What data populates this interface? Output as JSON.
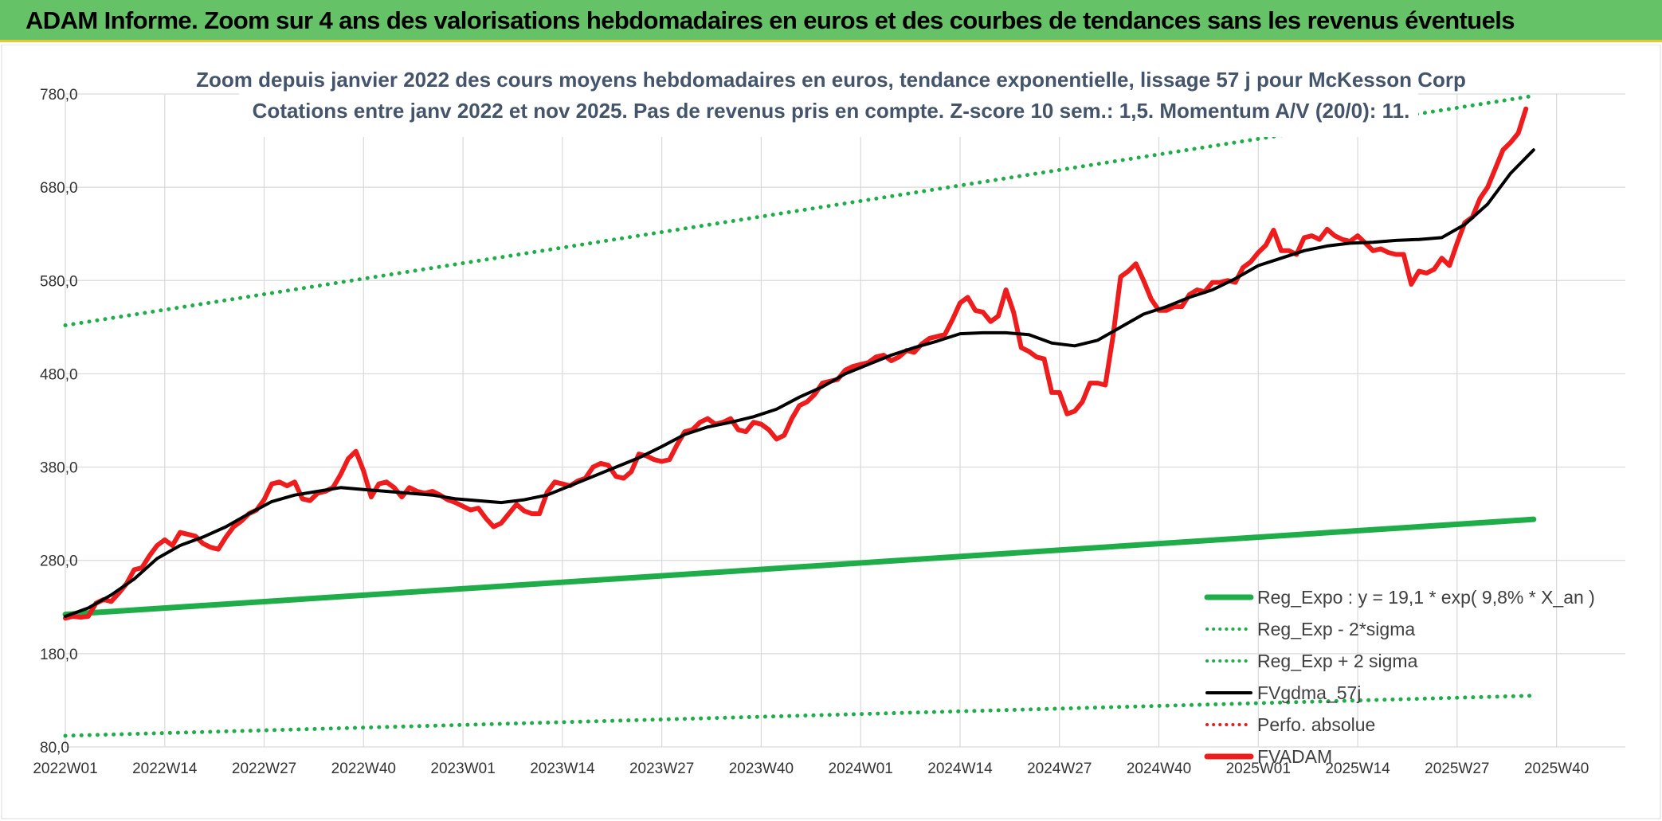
{
  "header": {
    "title": "ADAM Informe. Zoom sur 4 ans des valorisations hebdomadaires en euros et des courbes de tendances sans les revenus éventuels"
  },
  "colors": {
    "header_bg": "#66c266",
    "fvadam": "#ee1c1c",
    "fvgdma": "#000000",
    "reg": "#1fad4a",
    "perfo": "#e02020"
  },
  "chart_data": {
    "type": "line",
    "title": "Zoom depuis janvier 2022 des cours moyens hebdomadaires en euros, tendance exponentielle, lissage 57 j pour McKesson Corp",
    "subtitle": "Cotations entre janv 2022 et nov 2025. Pas de revenus pris en compte. Z-score 10 sem.: 1,5. Momentum A/V (20/0): 11.",
    "xlabel": "",
    "ylabel": "",
    "ylim": [
      80,
      780
    ],
    "yticks": [
      "80,0",
      "180,0",
      "280,0",
      "380,0",
      "480,0",
      "580,0",
      "680,0",
      "780,0"
    ],
    "ytick_values": [
      80,
      180,
      280,
      380,
      480,
      580,
      680,
      780
    ],
    "x_range_weeks": [
      0,
      204
    ],
    "xticks": [
      {
        "label": "2022W01",
        "week": 0
      },
      {
        "label": "2022W14",
        "week": 13
      },
      {
        "label": "2022W27",
        "week": 26
      },
      {
        "label": "2022W40",
        "week": 39
      },
      {
        "label": "2023W01",
        "week": 52
      },
      {
        "label": "2023W14",
        "week": 65
      },
      {
        "label": "2023W27",
        "week": 78
      },
      {
        "label": "2023W40",
        "week": 91
      },
      {
        "label": "2024W01",
        "week": 104
      },
      {
        "label": "2024W14",
        "week": 117
      },
      {
        "label": "2024W27",
        "week": 130
      },
      {
        "label": "2024W40",
        "week": 143
      },
      {
        "label": "2025W01",
        "week": 156
      },
      {
        "label": "2025W14",
        "week": 169
      },
      {
        "label": "2025W27",
        "week": 182
      },
      {
        "label": "2025W40",
        "week": 195
      }
    ],
    "legend": [
      {
        "name": "Reg_Expo : y = 19,1 * exp( 9,8% *  X_an )",
        "style": "solid-thick",
        "color": "#1fad4a"
      },
      {
        "name": "Reg_Exp - 2*sigma",
        "style": "dotted",
        "color": "#1fad4a"
      },
      {
        "name": "Reg_Exp + 2 sigma",
        "style": "dotted",
        "color": "#1fad4a"
      },
      {
        "name": "FVgdma_57j",
        "style": "solid",
        "color": "#000000"
      },
      {
        "name": "Perfo. absolue",
        "style": "dotted",
        "color": "#e02020"
      },
      {
        "name": "FVADAM",
        "style": "solid-thick",
        "color": "#ee1c1c"
      }
    ],
    "series": [
      {
        "name": "FVADAM",
        "points": [
          [
            0,
            218
          ],
          [
            1,
            220
          ],
          [
            2,
            219
          ],
          [
            3,
            220
          ],
          [
            4,
            234
          ],
          [
            5,
            238
          ],
          [
            6,
            236
          ],
          [
            7,
            245
          ],
          [
            8,
            255
          ],
          [
            9,
            270
          ],
          [
            10,
            272
          ],
          [
            11,
            285
          ],
          [
            12,
            296
          ],
          [
            13,
            302
          ],
          [
            14,
            296
          ],
          [
            15,
            310
          ],
          [
            16,
            308
          ],
          [
            17,
            306
          ],
          [
            18,
            298
          ],
          [
            19,
            294
          ],
          [
            20,
            292
          ],
          [
            21,
            305
          ],
          [
            22,
            316
          ],
          [
            23,
            322
          ],
          [
            24,
            330
          ],
          [
            25,
            334
          ],
          [
            26,
            345
          ],
          [
            27,
            362
          ],
          [
            28,
            364
          ],
          [
            29,
            360
          ],
          [
            30,
            364
          ],
          [
            31,
            346
          ],
          [
            32,
            344
          ],
          [
            33,
            352
          ],
          [
            34,
            354
          ],
          [
            35,
            358
          ],
          [
            36,
            372
          ],
          [
            37,
            389
          ],
          [
            38,
            397
          ],
          [
            39,
            376
          ],
          [
            40,
            348
          ],
          [
            41,
            362
          ],
          [
            42,
            364
          ],
          [
            43,
            358
          ],
          [
            44,
            348
          ],
          [
            45,
            358
          ],
          [
            46,
            354
          ],
          [
            47,
            352
          ],
          [
            48,
            354
          ],
          [
            49,
            350
          ],
          [
            50,
            345
          ],
          [
            51,
            342
          ],
          [
            52,
            338
          ],
          [
            53,
            334
          ],
          [
            54,
            336
          ],
          [
            55,
            325
          ],
          [
            56,
            316
          ],
          [
            57,
            320
          ],
          [
            58,
            330
          ],
          [
            59,
            340
          ],
          [
            60,
            333
          ],
          [
            61,
            330
          ],
          [
            62,
            330
          ],
          [
            63,
            353
          ],
          [
            64,
            364
          ],
          [
            65,
            362
          ],
          [
            66,
            360
          ],
          [
            67,
            365
          ],
          [
            68,
            368
          ],
          [
            69,
            380
          ],
          [
            70,
            384
          ],
          [
            71,
            382
          ],
          [
            72,
            370
          ],
          [
            73,
            368
          ],
          [
            74,
            375
          ],
          [
            75,
            394
          ],
          [
            76,
            392
          ],
          [
            77,
            388
          ],
          [
            78,
            386
          ],
          [
            79,
            388
          ],
          [
            80,
            404
          ],
          [
            81,
            418
          ],
          [
            82,
            420
          ],
          [
            83,
            428
          ],
          [
            84,
            432
          ],
          [
            85,
            426
          ],
          [
            86,
            428
          ],
          [
            87,
            432
          ],
          [
            88,
            420
          ],
          [
            89,
            418
          ],
          [
            90,
            428
          ],
          [
            91,
            426
          ],
          [
            92,
            420
          ],
          [
            93,
            410
          ],
          [
            94,
            414
          ],
          [
            95,
            432
          ],
          [
            96,
            446
          ],
          [
            97,
            450
          ],
          [
            98,
            458
          ],
          [
            99,
            470
          ],
          [
            100,
            472
          ],
          [
            101,
            474
          ],
          [
            102,
            484
          ],
          [
            103,
            488
          ],
          [
            104,
            490
          ],
          [
            105,
            492
          ],
          [
            106,
            498
          ],
          [
            107,
            500
          ],
          [
            108,
            494
          ],
          [
            109,
            498
          ],
          [
            110,
            505
          ],
          [
            111,
            503
          ],
          [
            112,
            512
          ],
          [
            113,
            518
          ],
          [
            114,
            520
          ],
          [
            115,
            522
          ],
          [
            116,
            538
          ],
          [
            117,
            556
          ],
          [
            118,
            562
          ],
          [
            119,
            548
          ],
          [
            120,
            546
          ],
          [
            121,
            536
          ],
          [
            122,
            542
          ],
          [
            123,
            570
          ],
          [
            124,
            546
          ],
          [
            125,
            508
          ],
          [
            126,
            504
          ],
          [
            127,
            498
          ],
          [
            128,
            496
          ],
          [
            129,
            460
          ],
          [
            130,
            460
          ],
          [
            131,
            437
          ],
          [
            132,
            440
          ],
          [
            133,
            450
          ],
          [
            134,
            470
          ],
          [
            135,
            470
          ],
          [
            136,
            468
          ],
          [
            137,
            520
          ],
          [
            138,
            584
          ],
          [
            139,
            590
          ],
          [
            140,
            598
          ],
          [
            141,
            580
          ],
          [
            142,
            560
          ],
          [
            143,
            548
          ],
          [
            144,
            548
          ],
          [
            145,
            552
          ],
          [
            146,
            552
          ],
          [
            147,
            565
          ],
          [
            148,
            570
          ],
          [
            149,
            568
          ],
          [
            150,
            578
          ],
          [
            151,
            578
          ],
          [
            152,
            580
          ],
          [
            153,
            578
          ],
          [
            154,
            594
          ],
          [
            155,
            600
          ],
          [
            156,
            610
          ],
          [
            157,
            618
          ],
          [
            158,
            634
          ],
          [
            159,
            612
          ],
          [
            160,
            612
          ],
          [
            161,
            608
          ],
          [
            162,
            626
          ],
          [
            163,
            628
          ],
          [
            164,
            624
          ],
          [
            165,
            635
          ],
          [
            166,
            628
          ],
          [
            167,
            624
          ],
          [
            168,
            622
          ],
          [
            169,
            628
          ],
          [
            170,
            620
          ],
          [
            171,
            612
          ],
          [
            172,
            614
          ],
          [
            173,
            610
          ],
          [
            174,
            608
          ],
          [
            175,
            608
          ],
          [
            176,
            576
          ],
          [
            177,
            590
          ],
          [
            178,
            588
          ],
          [
            179,
            592
          ],
          [
            180,
            604
          ],
          [
            181,
            596
          ],
          [
            182,
            620
          ],
          [
            183,
            642
          ],
          [
            184,
            648
          ],
          [
            185,
            668
          ],
          [
            186,
            680
          ],
          [
            187,
            700
          ],
          [
            188,
            720
          ],
          [
            189,
            728
          ],
          [
            190,
            738
          ],
          [
            191,
            764
          ]
        ]
      },
      {
        "name": "FVgdma_57j",
        "points": [
          [
            0,
            220
          ],
          [
            3,
            229
          ],
          [
            6,
            243
          ],
          [
            9,
            260
          ],
          [
            12,
            282
          ],
          [
            15,
            296
          ],
          [
            18,
            305
          ],
          [
            21,
            316
          ],
          [
            24,
            330
          ],
          [
            27,
            343
          ],
          [
            30,
            350
          ],
          [
            33,
            354
          ],
          [
            36,
            358
          ],
          [
            39,
            356
          ],
          [
            42,
            354
          ],
          [
            45,
            352
          ],
          [
            48,
            350
          ],
          [
            51,
            346
          ],
          [
            54,
            344
          ],
          [
            57,
            342
          ],
          [
            60,
            345
          ],
          [
            63,
            350
          ],
          [
            66,
            360
          ],
          [
            69,
            370
          ],
          [
            72,
            380
          ],
          [
            75,
            390
          ],
          [
            78,
            402
          ],
          [
            81,
            415
          ],
          [
            84,
            423
          ],
          [
            87,
            428
          ],
          [
            90,
            434
          ],
          [
            93,
            442
          ],
          [
            96,
            455
          ],
          [
            99,
            466
          ],
          [
            102,
            480
          ],
          [
            105,
            490
          ],
          [
            108,
            500
          ],
          [
            111,
            508
          ],
          [
            114,
            515
          ],
          [
            117,
            523
          ],
          [
            120,
            524
          ],
          [
            123,
            524
          ],
          [
            126,
            522
          ],
          [
            129,
            513
          ],
          [
            132,
            510
          ],
          [
            135,
            516
          ],
          [
            138,
            530
          ],
          [
            141,
            544
          ],
          [
            144,
            552
          ],
          [
            147,
            562
          ],
          [
            150,
            570
          ],
          [
            153,
            582
          ],
          [
            156,
            596
          ],
          [
            159,
            604
          ],
          [
            162,
            612
          ],
          [
            165,
            617
          ],
          [
            168,
            620
          ],
          [
            171,
            621
          ],
          [
            174,
            623
          ],
          [
            177,
            624
          ],
          [
            180,
            626
          ],
          [
            183,
            640
          ],
          [
            186,
            662
          ],
          [
            189,
            695
          ],
          [
            192,
            720
          ]
        ]
      },
      {
        "name": "Reg_Expo : y = 19,1 * exp( 9,8% *  X_an )",
        "start": [
          0,
          222
        ],
        "end": [
          192,
          324
        ]
      },
      {
        "name": "Reg_Exp - 2*sigma",
        "start": [
          0,
          92
        ],
        "end": [
          192,
          135
        ]
      },
      {
        "name": "Reg_Exp + 2 sigma",
        "start": [
          0,
          532
        ],
        "end": [
          192,
          778
        ]
      }
    ]
  }
}
